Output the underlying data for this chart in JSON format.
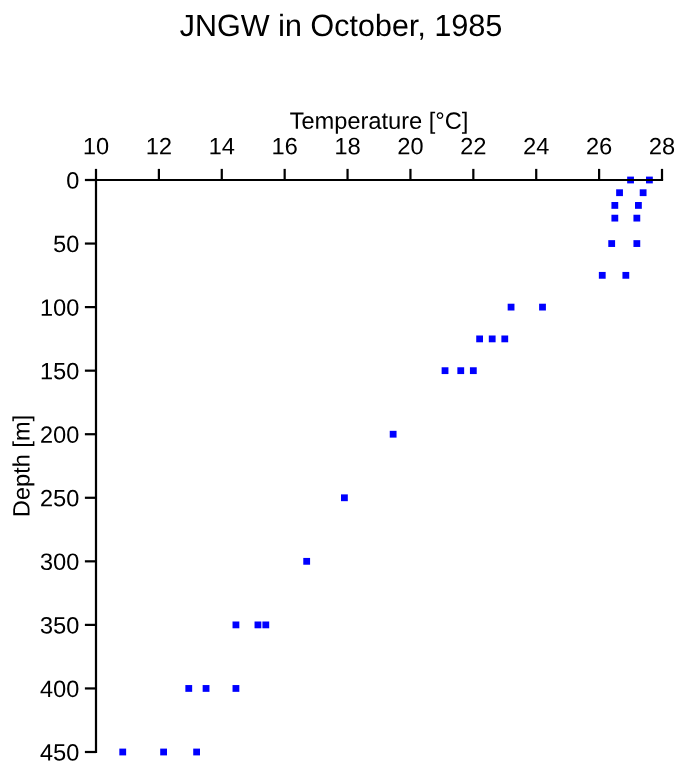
{
  "chart_data": {
    "type": "scatter",
    "title": "JNGW in October, 1985",
    "xlabel": "Temperature [°C]",
    "ylabel": "Depth [m]",
    "x": [
      27.0,
      27.6,
      26.65,
      27.4,
      26.5,
      27.25,
      26.5,
      27.2,
      26.4,
      27.2,
      26.1,
      26.85,
      23.2,
      24.2,
      22.2,
      22.6,
      23.0,
      21.1,
      21.6,
      22.0,
      19.45,
      17.9,
      16.7,
      14.45,
      15.15,
      15.4,
      12.95,
      13.5,
      14.45,
      10.85,
      12.15,
      13.2
    ],
    "series": [
      {
        "color": "#0000ff",
        "values": [
          0,
          0,
          10,
          10,
          20,
          20,
          30,
          30,
          50,
          50,
          75,
          75,
          100,
          100,
          125,
          125,
          125,
          150,
          150,
          150,
          200,
          250,
          300,
          350,
          350,
          350,
          400,
          400,
          400,
          450,
          450,
          450
        ]
      }
    ],
    "xlim": [
      10,
      28
    ],
    "xticks": [
      10,
      12,
      14,
      16,
      18,
      20,
      22,
      24,
      26,
      28
    ],
    "ylim": [
      450,
      0
    ],
    "yticks": [
      0,
      50,
      100,
      150,
      200,
      250,
      300,
      350,
      400,
      450
    ],
    "marker": "square",
    "grid": false,
    "legend": false
  }
}
